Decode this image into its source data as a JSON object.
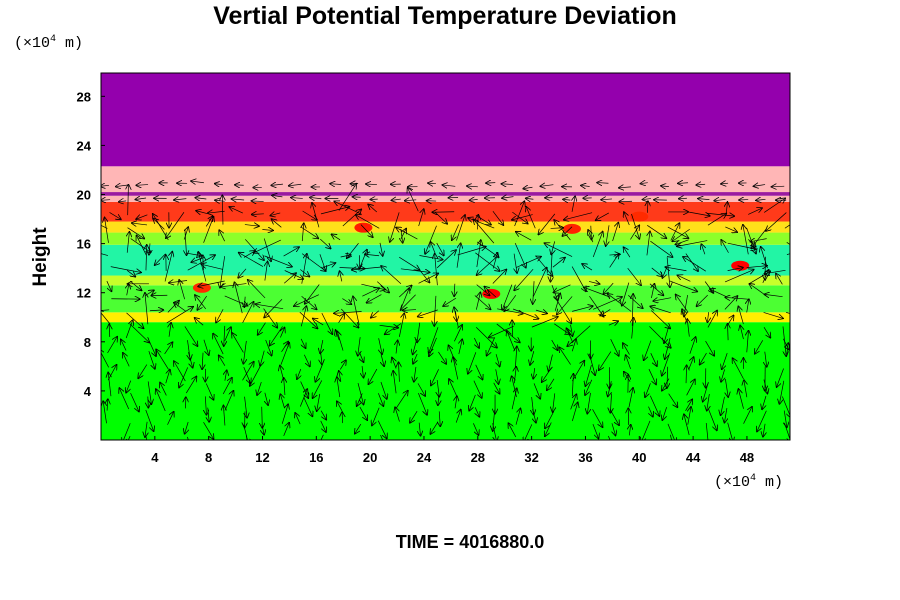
{
  "chart_data": {
    "type": "heatmap",
    "title": "Vertial Potential Temperature Deviation",
    "xunit_prefix": "(×10",
    "xunit_exp": "4",
    "xunit_suffix": " m)",
    "yunit_prefix": "(×10",
    "yunit_exp": "4",
    "yunit_suffix": " m)",
    "ylabel": "Height",
    "xlabel": "",
    "xticks": [
      "4",
      "8",
      "12",
      "16",
      "20",
      "24",
      "28",
      "32",
      "36",
      "40",
      "44",
      "48"
    ],
    "yticks": [
      "4",
      "8",
      "12",
      "16",
      "20",
      "24",
      "28"
    ],
    "xlim": [
      0,
      51.2
    ],
    "ylim": [
      0,
      29.9
    ],
    "footer": "TIME = 4016880.0",
    "grid": false,
    "vector_overlay": true,
    "layers": [
      {
        "ybottom": 0,
        "ytop": 9.6,
        "color": "#00ff00"
      },
      {
        "ybottom": 9.6,
        "ytop": 10.4,
        "color": "#ffee00"
      },
      {
        "ybottom": 10.4,
        "ytop": 12.6,
        "color": "#4cff33"
      },
      {
        "ybottom": 12.6,
        "ytop": 13.4,
        "color": "#c8ff2a"
      },
      {
        "ybottom": 13.4,
        "ytop": 15.9,
        "color": "#22f5a5"
      },
      {
        "ybottom": 15.9,
        "ytop": 16.9,
        "color": "#8dff2a"
      },
      {
        "ybottom": 16.9,
        "ytop": 17.8,
        "color": "#ffe01a"
      },
      {
        "ybottom": 17.8,
        "ytop": 19.4,
        "color": "#ff3a1a"
      },
      {
        "ybottom": 19.4,
        "ytop": 19.9,
        "color": "#ffb6b6"
      },
      {
        "ybottom": 19.9,
        "ytop": 20.2,
        "color": "#9a1aa0"
      },
      {
        "ybottom": 20.2,
        "ytop": 22.3,
        "color": "#ffb6b6"
      },
      {
        "ybottom": 22.3,
        "ytop": 29.9,
        "color": "#9400ad"
      }
    ],
    "hotspots": [
      {
        "x": 19.5,
        "y": 17.3,
        "color": "#ff1a00"
      },
      {
        "x": 35.0,
        "y": 17.2,
        "color": "#ff2200"
      },
      {
        "x": 47.5,
        "y": 14.2,
        "color": "#ff0000"
      },
      {
        "x": 29.0,
        "y": 11.9,
        "color": "#ff0000"
      },
      {
        "x": 7.5,
        "y": 12.4,
        "color": "#ff2a00"
      },
      {
        "x": 40.0,
        "y": 18.2,
        "color": "#ff2a00"
      }
    ]
  }
}
